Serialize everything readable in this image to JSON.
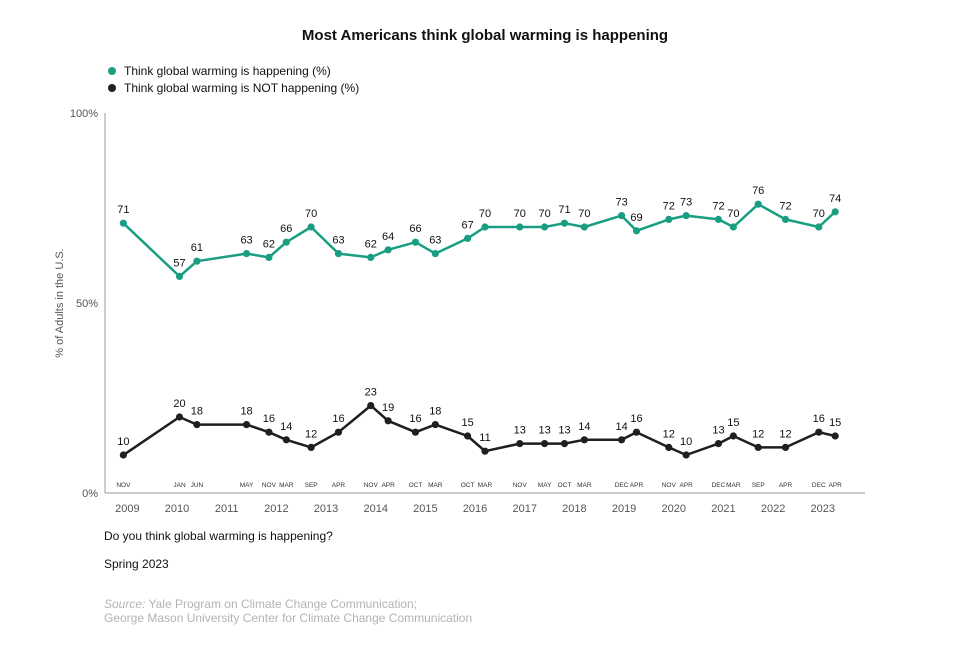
{
  "title": "Most Americans think global warming is happening",
  "question": "Do you think global warming is happening?",
  "date_note": "Spring 2023",
  "source": {
    "label": "Source:",
    "line1": "Yale Program on Climate Change Communication;",
    "line2": "George Mason University Center for Climate Change Communication"
  },
  "colors": {
    "happening": "#1a9e82",
    "not_happening": "#1f1f1f",
    "axis": "#999999",
    "tick_text": "#555555"
  },
  "chart_data": {
    "type": "line",
    "title": "Most Americans think global warming is happening",
    "ylabel": "% of Adults in the U.S.",
    "xlabel": "",
    "ylim": [
      0,
      100
    ],
    "xlim": [
      2008.55,
      2023.85
    ],
    "y_ticks": [
      {
        "value": 0,
        "label": "0%"
      },
      {
        "value": 50,
        "label": "50%"
      },
      {
        "value": 100,
        "label": "100%"
      }
    ],
    "year_ticks": [
      2009,
      2010,
      2011,
      2012,
      2013,
      2014,
      2015,
      2016,
      2017,
      2018,
      2019,
      2020,
      2021,
      2022,
      2023
    ],
    "x": [
      2008.92,
      2010.05,
      2010.4,
      2011.4,
      2011.85,
      2012.2,
      2012.7,
      2013.25,
      2013.9,
      2014.25,
      2014.8,
      2015.2,
      2015.85,
      2016.2,
      2016.9,
      2017.4,
      2017.8,
      2018.2,
      2018.95,
      2019.25,
      2019.9,
      2020.25,
      2020.9,
      2021.2,
      2021.7,
      2022.25,
      2022.92,
      2023.25
    ],
    "month_labels": [
      "NOV",
      "JAN",
      "JUN",
      "MAY",
      "NOV",
      "MAR",
      "SEP",
      "APR",
      "NOV",
      "APR",
      "OCT",
      "MAR",
      "OCT",
      "MAR",
      "NOV",
      "MAY",
      "OCT",
      "MAR",
      "DEC",
      "APR",
      "NOV",
      "APR",
      "DEC",
      "MAR",
      "SEP",
      "APR",
      "DEC",
      "APR"
    ],
    "series": [
      {
        "name": "Think global warming is happening (%)",
        "key": "happening",
        "values": [
          71,
          57,
          61,
          63,
          62,
          66,
          70,
          63,
          62,
          64,
          66,
          63,
          67,
          70,
          70,
          70,
          71,
          70,
          73,
          69,
          72,
          73,
          72,
          70,
          76,
          72,
          70,
          74
        ]
      },
      {
        "name": "Think global warming is NOT happening (%)",
        "key": "not_happening",
        "values": [
          10,
          20,
          18,
          18,
          16,
          14,
          12,
          16,
          23,
          19,
          16,
          18,
          15,
          11,
          13,
          13,
          13,
          14,
          14,
          16,
          12,
          10,
          13,
          15,
          12,
          12,
          16,
          15
        ]
      }
    ]
  }
}
